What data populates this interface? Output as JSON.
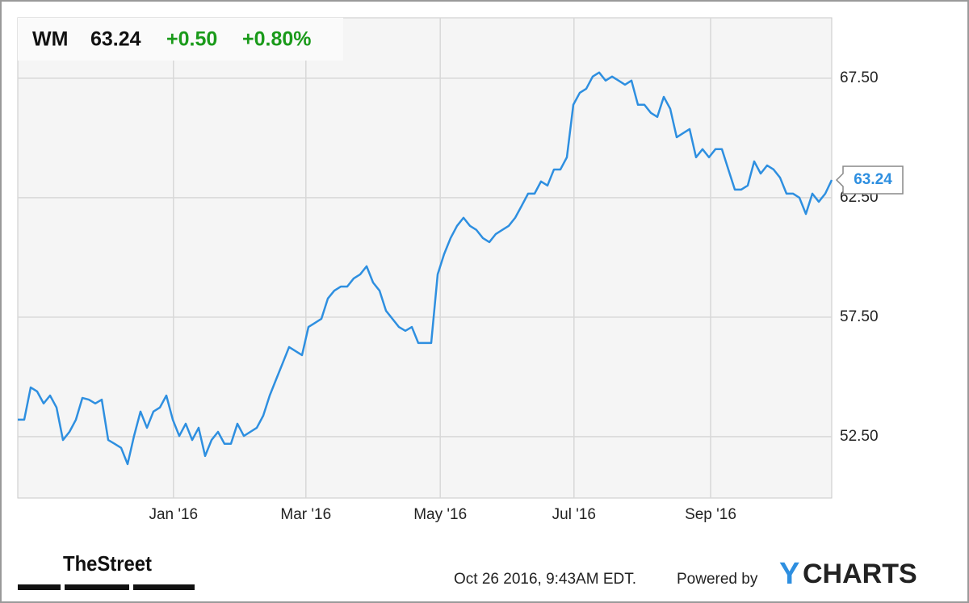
{
  "header": {
    "ticker": "WM",
    "change": "+0.50",
    "change_pct": "+0.80%"
  },
  "chart_data": {
    "type": "line",
    "series": [
      {
        "name": "WM",
        "color": "#2e8fe0",
        "values": [
          53.21,
          53.21,
          54.56,
          54.39,
          53.89,
          54.22,
          53.72,
          52.36,
          52.7,
          53.21,
          54.12,
          54.05,
          53.89,
          54.05,
          52.36,
          52.2,
          52.03,
          51.35,
          52.53,
          53.55,
          52.87,
          53.55,
          53.72,
          54.22,
          53.21,
          52.53,
          53.04,
          52.36,
          52.87,
          51.69,
          52.36,
          52.7,
          52.2,
          52.2,
          53.04,
          52.53,
          52.7,
          52.87,
          53.38,
          54.22,
          54.9,
          55.57,
          56.25,
          56.08,
          55.91,
          57.09,
          57.26,
          57.43,
          58.28,
          58.61,
          58.78,
          58.78,
          59.12,
          59.29,
          59.63,
          58.95,
          58.61,
          57.77,
          57.43,
          57.09,
          56.93,
          57.09,
          56.42,
          56.42,
          56.42,
          59.29,
          60.14,
          60.81,
          61.32,
          61.66,
          61.32,
          61.15,
          60.81,
          60.64,
          60.98,
          61.15,
          61.32,
          61.66,
          62.16,
          62.67,
          62.67,
          63.18,
          63.01,
          63.68,
          63.68,
          64.19,
          66.39,
          66.89,
          67.06,
          67.57,
          67.74,
          67.4,
          67.57,
          67.4,
          67.23,
          67.4,
          66.39,
          66.39,
          66.05,
          65.88,
          66.72,
          66.22,
          65.03,
          65.2,
          65.37,
          64.19,
          64.53,
          64.19,
          64.53,
          64.53,
          63.68,
          62.84,
          62.84,
          63.01,
          64.02,
          63.51,
          63.85,
          63.68,
          63.34,
          62.67,
          62.67,
          62.5,
          61.82,
          62.67,
          62.33,
          62.67,
          63.24
        ]
      }
    ],
    "xlim": [
      0,
      126
    ],
    "xticks": [
      {
        "value": 24.1,
        "label": "Jan '16"
      },
      {
        "value": 44.6,
        "label": "Mar '16"
      },
      {
        "value": 65.4,
        "label": "May '16"
      },
      {
        "value": 86.1,
        "label": "Jul '16"
      },
      {
        "value": 107.25,
        "label": "Sep '16"
      }
    ],
    "ylim": [
      49.93,
      70.03
    ],
    "yticks": [
      {
        "value": 52.5,
        "label": "52.50"
      },
      {
        "value": 57.5,
        "label": "57.50"
      },
      {
        "value": 62.5,
        "label": "62.50"
      },
      {
        "value": 67.5,
        "label": "67.50"
      }
    ],
    "grid": true
  },
  "footer": {
    "source": "TheStreet",
    "timestamp": "Oct 26 2016, 9:43AM EDT.",
    "powered": "Powered by",
    "brand": [
      "Y",
      "CHARTS"
    ]
  }
}
